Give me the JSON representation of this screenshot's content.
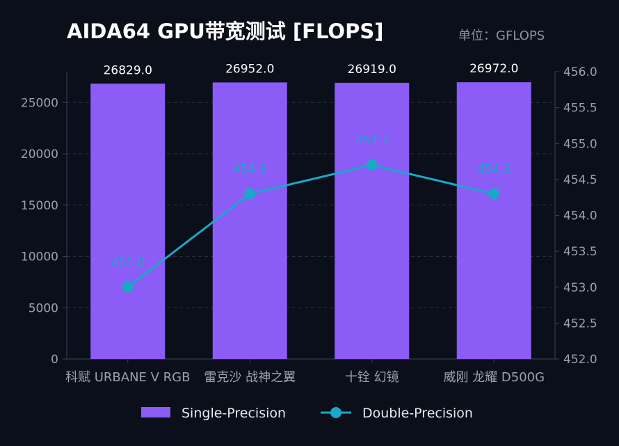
{
  "header": {
    "title": "AIDA64 GPU带宽测试 [FLOPS]",
    "unit": "单位：GFLOPS"
  },
  "colors": {
    "background": "#0b0f1a",
    "bar": "#8b5cf6",
    "line": "#1aa8c9",
    "grid": "#2a3040",
    "axis": "#3a4152"
  },
  "chart_data": {
    "type": "bar",
    "categories": [
      "科赋 URBANE V RGB",
      "雷克沙 战神之翼",
      "十铨 幻镜",
      "威刚 龙耀 D500G"
    ],
    "series": [
      {
        "name": "Single-Precision",
        "type": "bar",
        "axis": "left",
        "values": [
          26829.0,
          26952.0,
          26919.0,
          26972.0
        ],
        "labels": [
          "26829.0",
          "26952.0",
          "26919.0",
          "26972.0"
        ]
      },
      {
        "name": "Double-Precision",
        "type": "line",
        "axis": "right",
        "values": [
          453.0,
          454.3,
          454.7,
          454.3
        ],
        "labels": [
          "453.0",
          "454.3",
          "454.7",
          "454.3"
        ]
      }
    ],
    "y_left": {
      "ylim": [
        0,
        28000
      ],
      "ticks": [
        "0",
        "5000",
        "10000",
        "15000",
        "20000",
        "25000"
      ],
      "tick_values": [
        0,
        5000,
        10000,
        15000,
        20000,
        25000
      ]
    },
    "y_right": {
      "ylim": [
        452.0,
        456.0
      ],
      "ticks": [
        "452.0",
        "452.5",
        "453.0",
        "453.5",
        "454.0",
        "454.5",
        "455.0",
        "455.5",
        "456.0"
      ],
      "tick_values": [
        452.0,
        452.5,
        453.0,
        453.5,
        454.0,
        454.5,
        455.0,
        455.5,
        456.0
      ]
    },
    "grid": true,
    "legend_position": "bottom-center"
  }
}
